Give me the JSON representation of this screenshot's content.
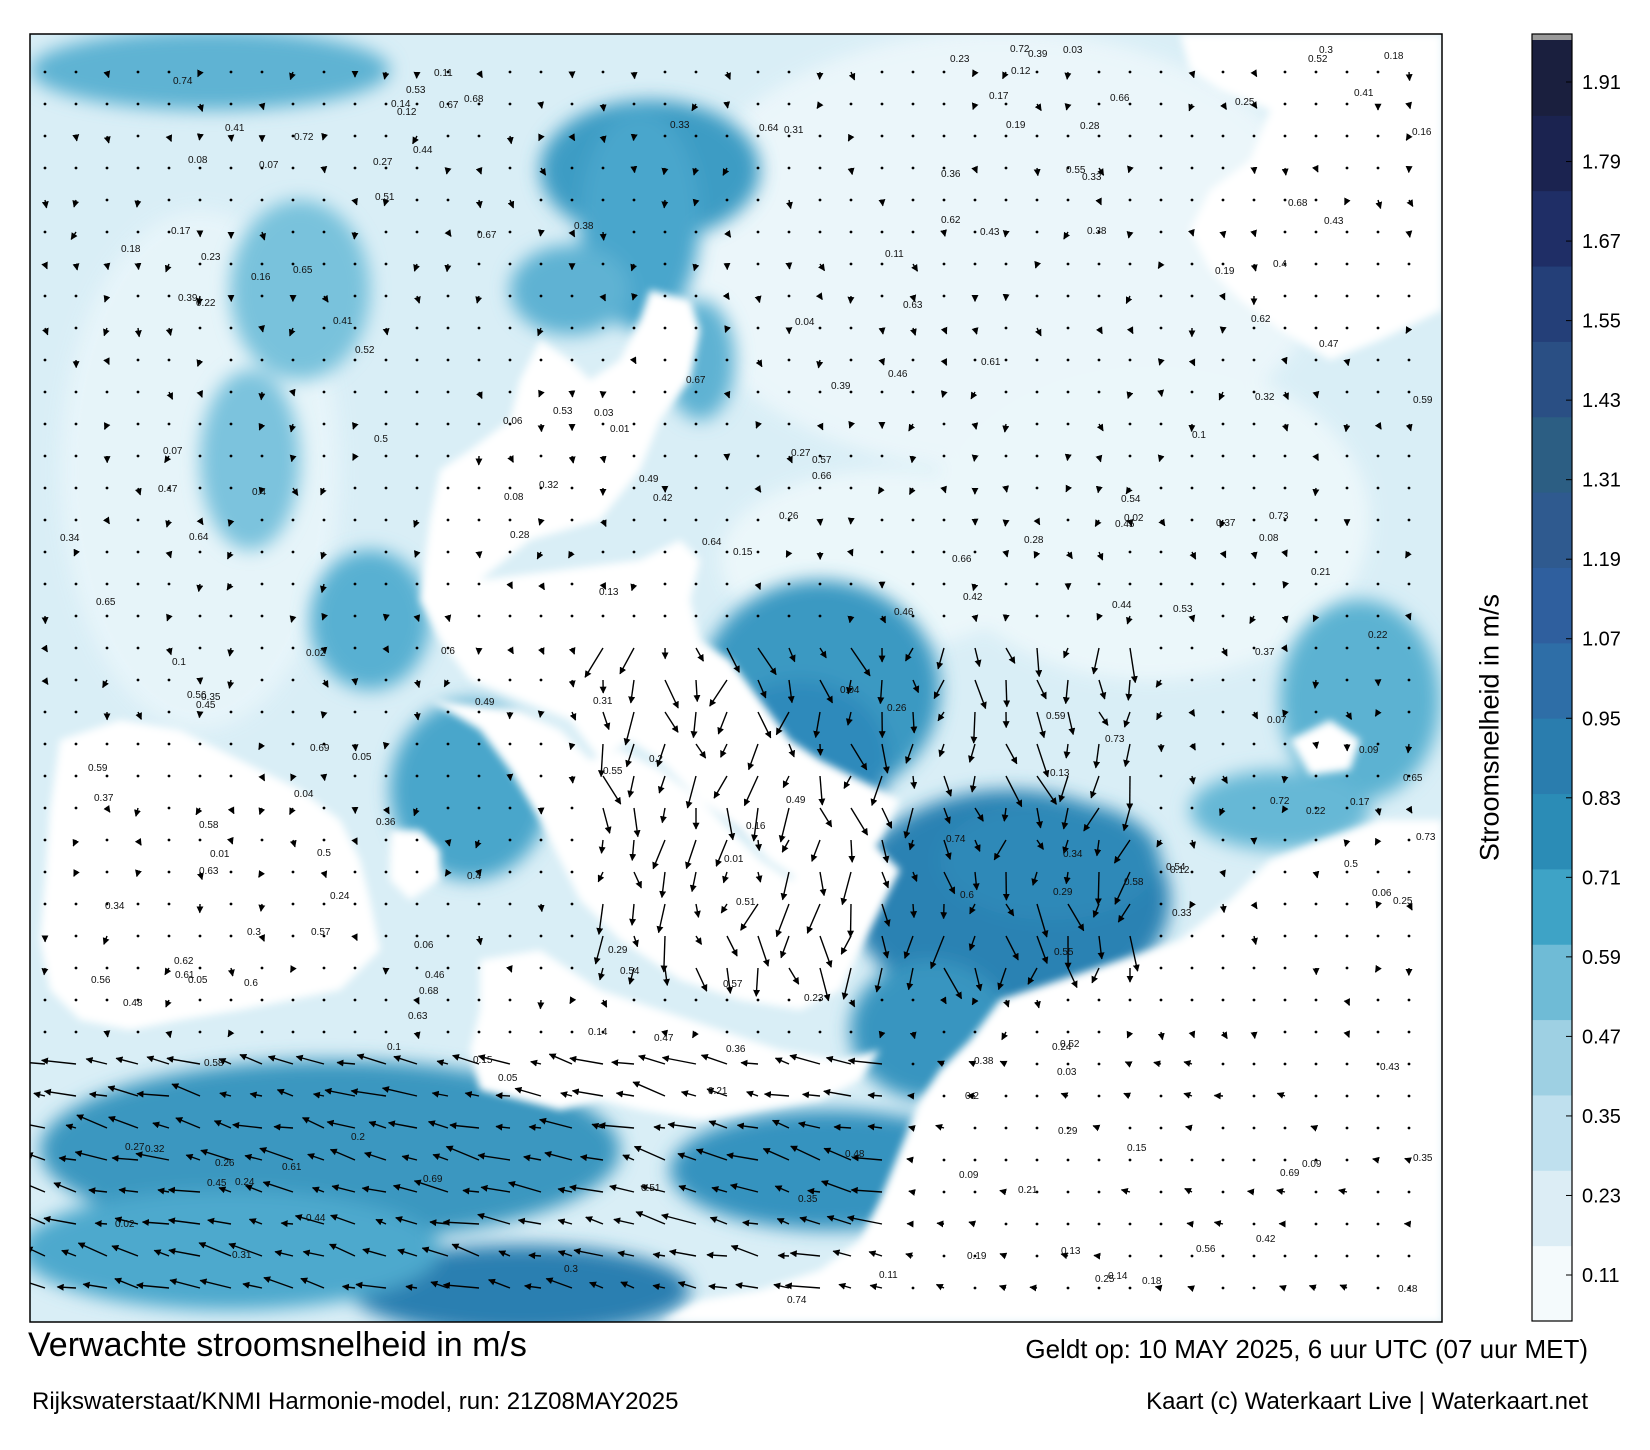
{
  "title": "Verwachte stroomsnelheid in m/s",
  "subtitle": "Rijkswaterstaat/KNMI Harmonie-model, run: 21Z08MAY2025",
  "valid": "Geldt op: 10 MAY 2025, 6 uur UTC (07 uur MET)",
  "credit": "Kaart (c) Waterkaart Live | Waterkaart.net",
  "colorbar": {
    "label": "Stroomsnelheid in m/s",
    "ticks": [
      "1.91",
      "1.79",
      "1.67",
      "1.55",
      "1.43",
      "1.31",
      "1.19",
      "1.07",
      "0.95",
      "0.83",
      "0.71",
      "0.59",
      "0.47",
      "0.35",
      "0.23",
      "0.11"
    ],
    "colors": [
      "#f4fafc",
      "#dcedf5",
      "#bfe0ee",
      "#9ed0e3",
      "#6fbbd6",
      "#3ea3c6",
      "#2b8cb6",
      "#2a7dae",
      "#2e6ea7",
      "#2f5f9e",
      "#2f5a8f",
      "#2c5e83",
      "#2a4f84",
      "#243f78",
      "#1f2e66",
      "#1b2350",
      "#1a1f3e"
    ]
  },
  "map": {
    "land_color": "#ffffff",
    "sea_color": "#d8eef6",
    "strong_current_color": "#2c86b3"
  },
  "current_labels": [
    {
      "v": "0.13"
    },
    {
      "v": "0.07"
    },
    {
      "v": "0.26"
    },
    {
      "v": "0.12"
    },
    {
      "v": "0.01"
    },
    {
      "v": "0.15"
    },
    {
      "v": "0.05"
    },
    {
      "v": "0.19"
    },
    {
      "v": "0.06"
    },
    {
      "v": "0.11"
    },
    {
      "v": "0.17"
    },
    {
      "v": "0.1"
    },
    {
      "v": "0.08"
    },
    {
      "v": "0.09"
    },
    {
      "v": "0.14"
    },
    {
      "v": "0.21"
    },
    {
      "v": "0.16"
    },
    {
      "v": "0.04"
    },
    {
      "v": "0.03"
    },
    {
      "v": "0.24"
    },
    {
      "v": "0.18"
    },
    {
      "v": "0.25"
    },
    {
      "v": "0.28"
    },
    {
      "v": "0.22"
    },
    {
      "v": "0.23"
    },
    {
      "v": "0.27"
    },
    {
      "v": "0.34"
    },
    {
      "v": "0.45"
    },
    {
      "v": "0.51"
    },
    {
      "v": "0.44"
    },
    {
      "v": "0.35"
    },
    {
      "v": "0.38"
    },
    {
      "v": "0.32"
    },
    {
      "v": "0.49"
    },
    {
      "v": "0.37"
    },
    {
      "v": "0.33"
    },
    {
      "v": "0.29"
    },
    {
      "v": "0.02"
    },
    {
      "v": "0.36"
    },
    {
      "v": "0.3"
    },
    {
      "v": "0.43"
    },
    {
      "v": "0.39"
    },
    {
      "v": "0.42"
    },
    {
      "v": "0.47"
    },
    {
      "v": "0.54"
    },
    {
      "v": "0.46"
    },
    {
      "v": "0.48"
    },
    {
      "v": "0.41"
    },
    {
      "v": "0.66"
    },
    {
      "v": "0.64"
    },
    {
      "v": "0.65"
    },
    {
      "v": "0.53"
    },
    {
      "v": "0.52"
    },
    {
      "v": "0.59"
    },
    {
      "v": "0.55"
    },
    {
      "v": "0.56"
    },
    {
      "v": "0.61"
    },
    {
      "v": "0.74"
    },
    {
      "v": "0.69"
    },
    {
      "v": "0.72"
    },
    {
      "v": "0.73"
    },
    {
      "v": "0.67"
    },
    {
      "v": "0.57"
    },
    {
      "v": "0.58"
    },
    {
      "v": "0.31"
    },
    {
      "v": "0.4"
    },
    {
      "v": "0.2"
    },
    {
      "v": "0.5"
    },
    {
      "v": "0.6"
    },
    {
      "v": "0.62"
    },
    {
      "v": "0.63"
    },
    {
      "v": "0.68"
    }
  ]
}
